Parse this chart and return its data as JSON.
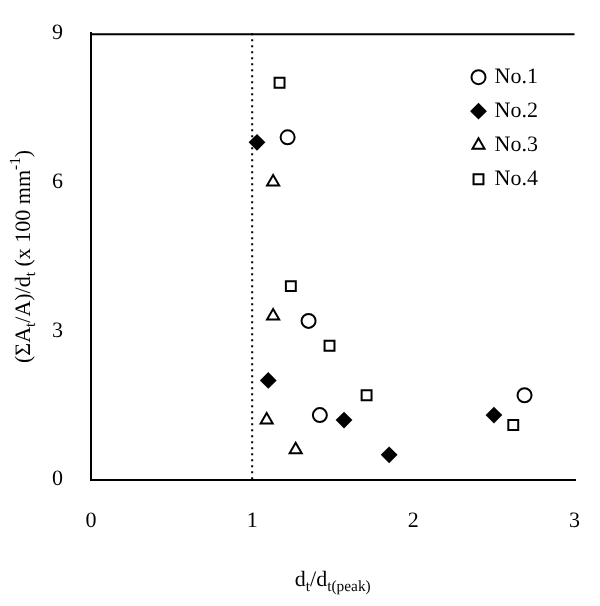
{
  "chart_data": {
    "type": "scatter",
    "xlabel": "d$_{t}$/d$_{t(peak)}$",
    "ylabel": "(ΣA$_{t}$/A)/d$_{t}$ (x 100 mm$^{-1}$)",
    "xlim": [
      0,
      3
    ],
    "xticks": [
      0,
      1,
      2,
      3
    ],
    "ylim": [
      0,
      9
    ],
    "yticks": [
      0,
      3,
      6,
      9
    ],
    "grid": false,
    "legend": "top right",
    "ref_lines": [
      {
        "axis": "x",
        "value": 1,
        "line_style": "dotted",
        "color": "#000000"
      }
    ],
    "series": [
      {
        "name": "No.1",
        "color": "#000000",
        "marker": "circle",
        "x": [
          1.22,
          1.35,
          1.42,
          2.69
        ],
        "values": [
          6.9,
          3.2,
          1.3,
          1.7
        ]
      },
      {
        "name": "No.2",
        "color": "#000000",
        "marker": "diamond",
        "x": [
          1.03,
          1.1,
          1.57,
          1.85,
          2.5
        ],
        "values": [
          6.8,
          2.0,
          1.2,
          0.5,
          1.3
        ]
      },
      {
        "name": "No.3",
        "color": "#000000",
        "marker": "triangle",
        "x": [
          1.13,
          1.13,
          1.09,
          1.27
        ],
        "values": [
          6.0,
          3.3,
          1.2,
          0.6
        ]
      },
      {
        "name": "No.4",
        "color": "#000000",
        "marker": "square",
        "x": [
          1.17,
          1.24,
          1.48,
          1.71,
          2.62
        ],
        "values": [
          8.0,
          3.9,
          2.7,
          1.7,
          1.1
        ]
      }
    ]
  }
}
